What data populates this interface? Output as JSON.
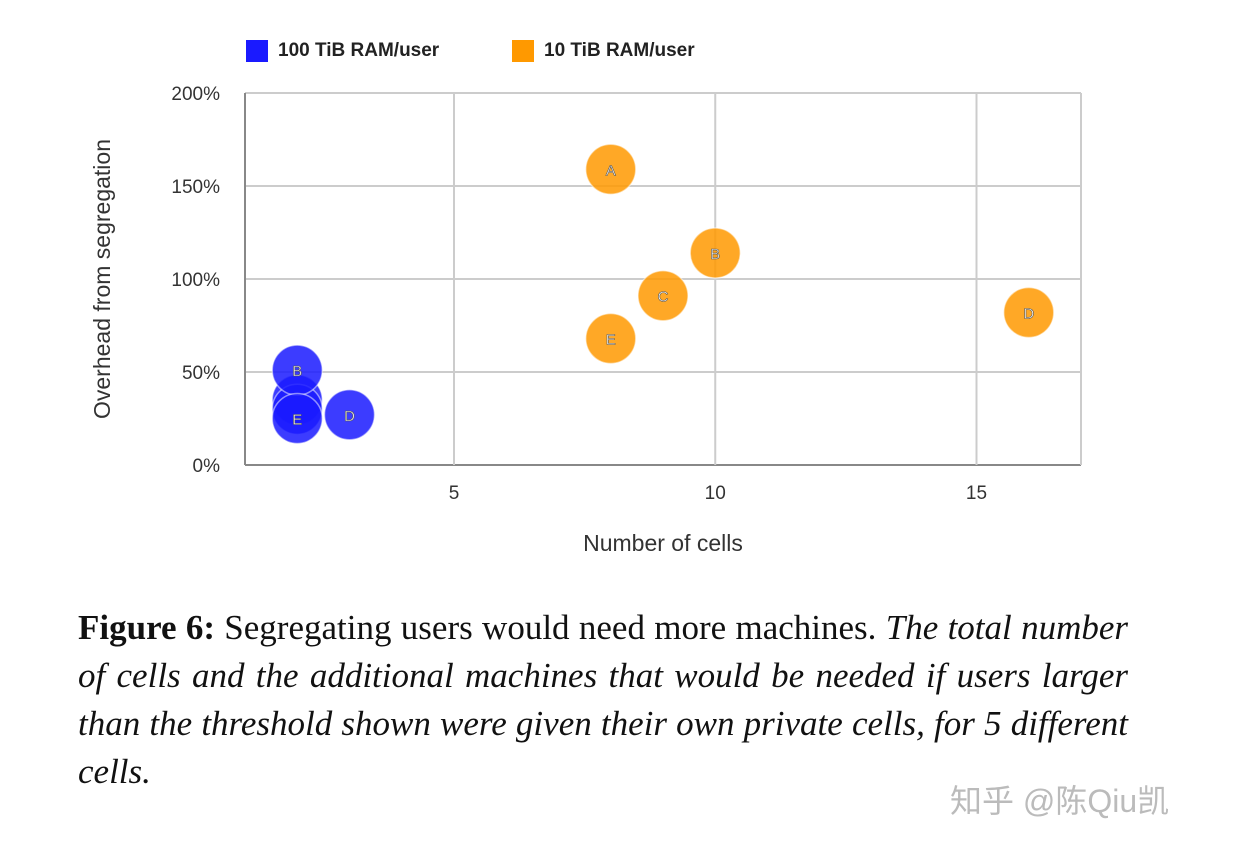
{
  "chart_data": {
    "type": "scatter",
    "xlabel": "Number of cells",
    "ylabel": "Overhead from segregation",
    "xlim": [
      1,
      17
    ],
    "ylim": [
      0,
      200
    ],
    "xticks": [
      5,
      10,
      15
    ],
    "yticks": [
      "0%",
      "50%",
      "100%",
      "150%",
      "200%"
    ],
    "grid": true,
    "legend_position": "top-left",
    "series": [
      {
        "name": "100 TiB RAM/user",
        "color": "#1a1aff",
        "points": [
          {
            "x": 2,
            "y": 35,
            "label": ""
          },
          {
            "x": 2,
            "y": 30,
            "label": ""
          },
          {
            "x": 2,
            "y": 51,
            "label": "B"
          },
          {
            "x": 2,
            "y": 25,
            "label": "E"
          },
          {
            "x": 3,
            "y": 27,
            "label": "D"
          }
        ]
      },
      {
        "name": "10 TiB RAM/user",
        "color": "#ff9900",
        "points": [
          {
            "x": 8,
            "y": 159,
            "label": "A"
          },
          {
            "x": 10,
            "y": 114,
            "label": "B"
          },
          {
            "x": 9,
            "y": 91,
            "label": "C"
          },
          {
            "x": 8,
            "y": 68,
            "label": "E"
          },
          {
            "x": 16,
            "y": 82,
            "label": "D"
          }
        ]
      }
    ]
  },
  "caption": {
    "label": "Figure 6:",
    "text": " Segregating users would need more machines. ",
    "italic": "The total number of cells and the additional machines that would be needed if users larger than the threshold shown were given their own private cells, for 5 different cells."
  },
  "watermark": "知乎 @陈Qiu凯"
}
